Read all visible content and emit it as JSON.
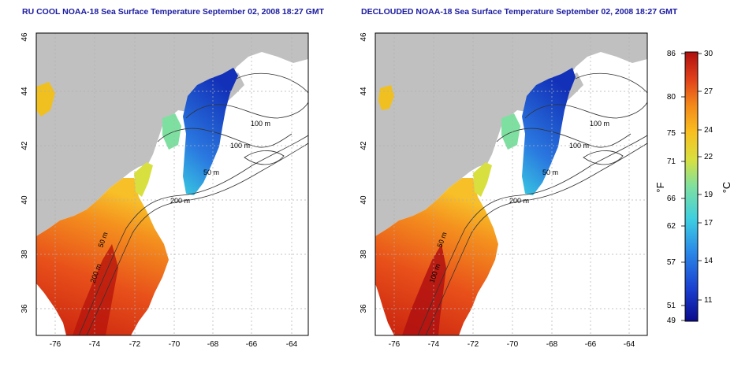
{
  "panels": [
    {
      "id": "left",
      "title": "RU COOL NOAA-18 Sea Surface Temperature September 02, 2008 18:27 GMT",
      "lon_ticks": [
        "-76",
        "-74",
        "-72",
        "-70",
        "-68",
        "-66",
        "-64"
      ],
      "lat_ticks": [
        "36",
        "38",
        "40",
        "42",
        "44",
        "46"
      ],
      "contour_labels": [
        "100 m",
        "100 m",
        "50 m",
        "200 m",
        "50 m",
        "200 m"
      ]
    },
    {
      "id": "right",
      "title": "DECLOUDED NOAA-18 Sea Surface Temperature September 02, 2008 18:27 GMT",
      "lon_ticks": [
        "-76",
        "-74",
        "-72",
        "-70",
        "-68",
        "-66",
        "-64"
      ],
      "lat_ticks": [
        "36",
        "38",
        "40",
        "42",
        "44",
        "46"
      ],
      "contour_labels": [
        "100 m",
        "100 m",
        "50 m",
        "200 m",
        "50 m",
        "100 m"
      ]
    }
  ],
  "colorbar": {
    "fahrenheit_ticks": [
      "86",
      "80",
      "75",
      "71",
      "66",
      "62",
      "57",
      "51",
      "49"
    ],
    "celsius_ticks": [
      "30",
      "27",
      "24",
      "22",
      "19",
      "17",
      "14",
      "11"
    ],
    "f_label": "°F",
    "c_label": "°C",
    "colors": [
      "#0a0a8c",
      "#1a3fd0",
      "#2a8ae8",
      "#3ecfe0",
      "#7ee0a0",
      "#d8e040",
      "#f8c020",
      "#f48a1a",
      "#e0401a",
      "#b01010"
    ]
  },
  "map_colors": {
    "land": "#c0c0c0",
    "cloud": "#ffffff",
    "contour": "#333333",
    "grid": "#b0b0b0"
  }
}
